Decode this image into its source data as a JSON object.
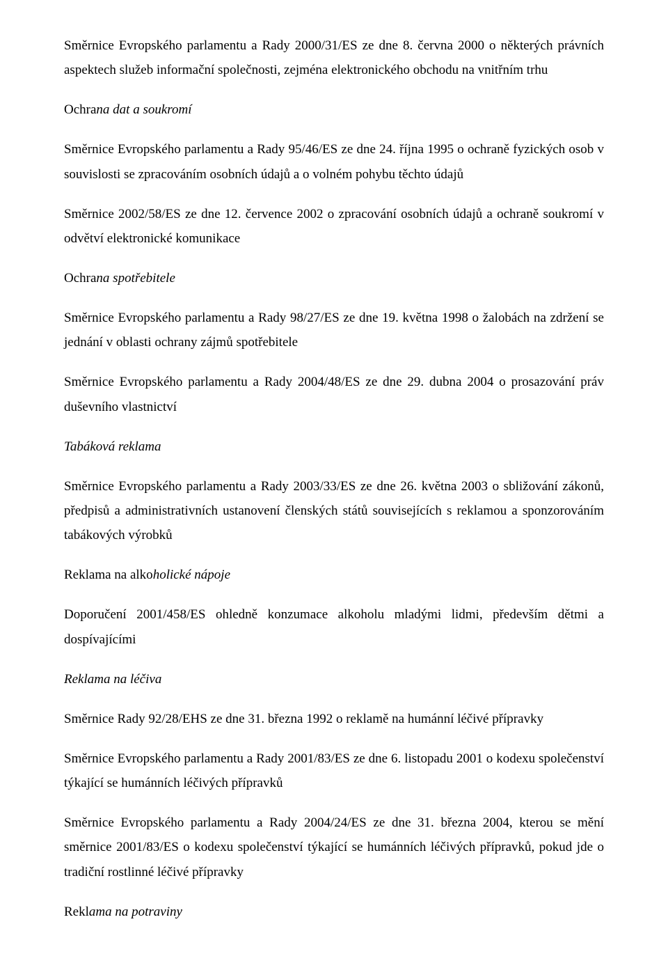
{
  "paragraphs": {
    "p1": " Směrnice Evropského parlamentu a Rady 2000/31/ES ze dne 8. června 2000 o některých právních aspektech služeb informační společnosti, zejména elektronického obchodu na vnitřním trhu",
    "s1_plain": "Ochra",
    "s1_italic": "na dat a soukromí",
    "p2": " Směrnice Evropského parlamentu a Rady 95/46/ES ze dne 24. října 1995 o ochraně fyzických osob v souvislosti se zpracováním osobních údajů a o volném pohybu těchto údajů",
    "p3": " Směrnice 2002/58/ES ze dne 12. července 2002 o zpracování osobních údajů a ochraně soukromí v odvětví elektronické komunikace",
    "s2_plain": "Ochra",
    "s2_italic": "na spotřebitele",
    "p4": " Směrnice Evropského parlamentu a Rady 98/27/ES ze dne 19. května 1998 o žalobách na zdržení se jednání v oblasti ochrany zájmů spotřebitele",
    "p5": " Směrnice Evropského parlamentu a Rady 2004/48/ES ze dne 29. dubna 2004 o prosazování práv duševního vlastnictví",
    "s3": "Tabáková reklama",
    "p6": " Směrnice Evropského parlamentu a Rady 2003/33/ES ze dne 26. května 2003 o sbližování zákonů, předpisů a administrativních ustanovení členských států souvisejících s reklamou a sponzorováním tabákových výrobků",
    "s4_plain": "Reklama na alko",
    "s4_italic": "holické nápoje",
    "p7": " Doporučení 2001/458/ES ohledně konzumace alkoholu mladými lidmi, především dětmi a dospívajícími",
    "s5": "Reklama na léčiva",
    "p8": " Směrnice Rady 92/28/EHS ze dne 31. března 1992 o reklamě na humánní léčivé přípravky",
    "p9": " Směrnice Evropského parlamentu a Rady 2001/83/ES ze dne 6. listopadu 2001 o kodexu společenství týkající se humánních léčivých přípravků",
    "p10": " Směrnice Evropského parlamentu a Rady 2004/24/ES ze dne 31. března 2004, kterou se mění směrnice 2001/83/ES o kodexu společenství týkající se humánních léčivých přípravků, pokud jde o tradiční rostlinné léčivé přípravky",
    "s6_plain": "Rekl",
    "s6_italic": "ama na potraviny"
  }
}
